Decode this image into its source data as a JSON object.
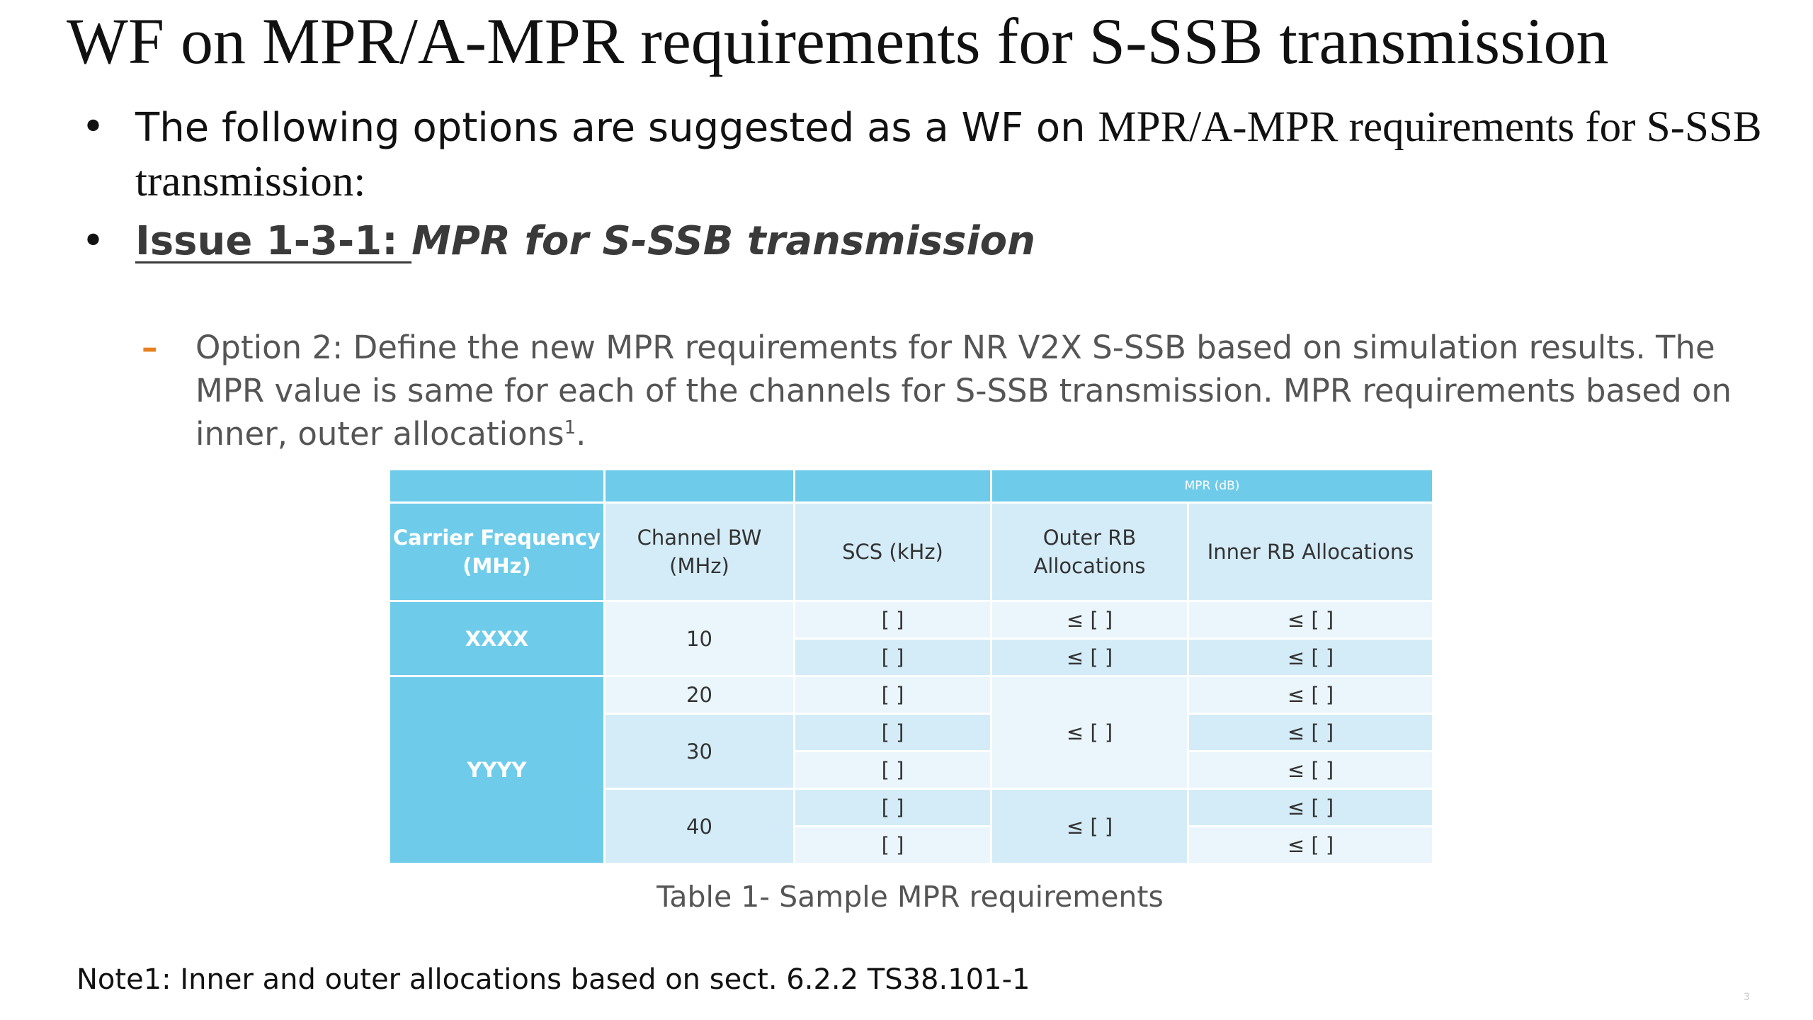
{
  "slide": {
    "title": "WF on MPR/A-MPR requirements for S-SSB transmission",
    "bullet1_sans": "The following options are suggested as a WF on ",
    "bullet1_serif": "MPR/A-MPR requirements for S-SSB transmission:",
    "bullet2_underlined": "Issue 1-3-1: ",
    "bullet2_italic": "MPR for S-SSB transmission",
    "option_text": "Option 2: Define the new MPR requirements for NR V2X S-SSB based on simulation results. The MPR value is same for each of the channels for S-SSB transmission. MPR requirements based on inner, outer allocations",
    "option_sup": "1",
    "option_end": ".",
    "bullet_symbol": "•",
    "dash_symbol": "–",
    "caption": "Table 1- Sample MPR requirements",
    "note": "Note1: Inner and outer allocations based on sect. 6.2.2 TS38.101-1",
    "page_number": "3"
  },
  "table": {
    "group_header": "MPR (dB)",
    "headers": {
      "carrier_line1": "Carrier Frequency",
      "carrier_line2": "(MHz)",
      "bw_line1": "Channel BW",
      "bw_line2": "(MHz)",
      "scs": "SCS (kHz)",
      "outer_line1": "Outer RB",
      "outer_line2": "Allocations",
      "inner": "Inner RB Allocations"
    },
    "freq_groups": [
      "XXXX",
      "YYYY"
    ],
    "bandwidths": [
      "10",
      "20",
      "30",
      "40"
    ],
    "scs_values": [
      "[ ]",
      "[ ]",
      "[ ]",
      "[ ]",
      "[ ]",
      "[ ]",
      "[ ]"
    ],
    "outer_values": [
      "≤ [ ]",
      "≤ [ ]",
      "≤ [ ]",
      "≤ [ ]"
    ],
    "inner_values": [
      "≤ [ ]",
      "≤ [ ]",
      "≤ [ ]",
      "≤ [ ]",
      "≤ [ ]",
      "≤ [ ]",
      "≤ [ ]"
    ]
  }
}
